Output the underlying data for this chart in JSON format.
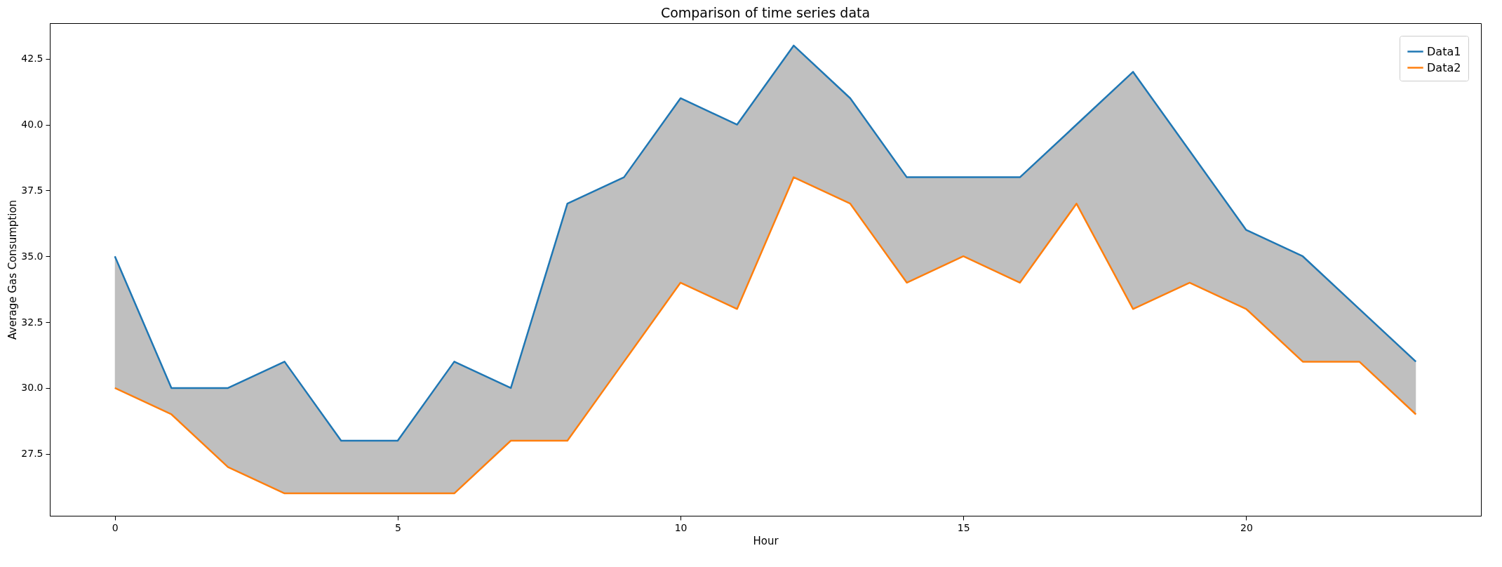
{
  "chart_data": {
    "type": "line",
    "title": "Comparison of time series data",
    "xlabel": "Hour",
    "ylabel": "Average Gas Consumption",
    "x": [
      0,
      1,
      2,
      3,
      4,
      5,
      6,
      7,
      8,
      9,
      10,
      11,
      12,
      13,
      14,
      15,
      16,
      17,
      18,
      19,
      20,
      21,
      22,
      23
    ],
    "series": [
      {
        "name": "Data1",
        "color": "#1f77b4",
        "values": [
          35,
          30,
          30,
          31,
          28,
          28,
          31,
          30,
          37,
          38,
          41,
          40,
          43,
          41,
          38,
          38,
          38,
          40,
          42,
          39,
          36,
          35,
          33,
          31
        ],
        "lower": [
          30,
          29,
          27,
          26,
          26,
          26,
          26,
          28,
          28,
          31,
          34,
          33,
          38,
          37,
          34,
          35,
          34,
          37,
          33,
          34,
          33,
          31,
          31,
          29
        ],
        "upper": [
          35,
          30,
          30,
          31,
          28,
          28,
          31,
          30,
          37,
          38,
          41,
          40,
          43,
          41,
          38,
          38,
          38,
          40,
          42,
          39,
          36,
          35,
          33,
          31
        ]
      },
      {
        "name": "Data2",
        "color": "#ff7f0e",
        "values": [
          30,
          29,
          27,
          26,
          26,
          26,
          26,
          28,
          28,
          31,
          34,
          33,
          38,
          37,
          34,
          35,
          34,
          37,
          33,
          34,
          33,
          31,
          31,
          29
        ]
      }
    ],
    "xlim": [
      -1.15,
      24.15
    ],
    "ylim": [
      25.15,
      43.85
    ],
    "xticks": [
      0,
      5,
      10,
      15,
      20
    ],
    "yticks": [
      {
        "value": 27.5,
        "label": "27.5"
      },
      {
        "value": 30,
        "label": "30.0"
      },
      {
        "value": 32.5,
        "label": "32.5"
      },
      {
        "value": 35,
        "label": "35.0"
      },
      {
        "value": 37.5,
        "label": "37.5"
      },
      {
        "value": 40,
        "label": "40.0"
      },
      {
        "value": 42.5,
        "label": "42.5"
      }
    ],
    "grid": false,
    "legend": "top right",
    "marker": "none",
    "line_style": "solid"
  }
}
